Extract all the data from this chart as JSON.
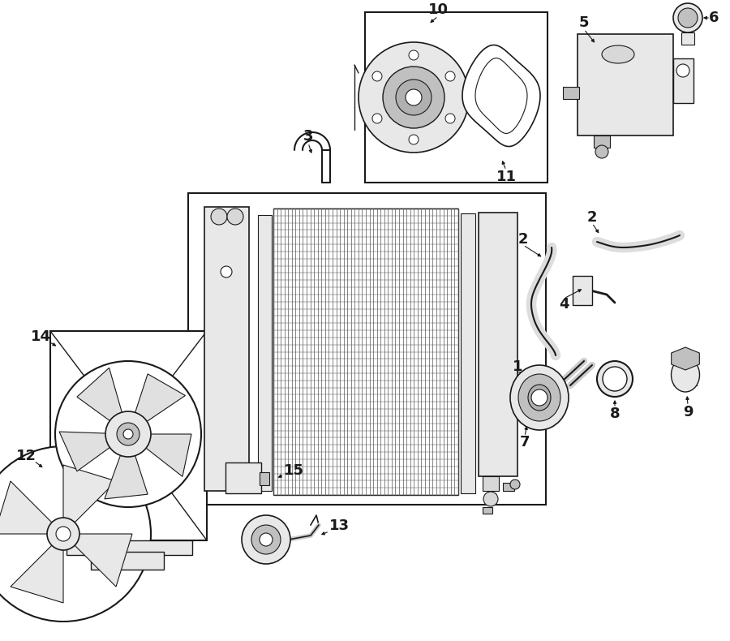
{
  "bg_color": "#ffffff",
  "lc": "#1a1a1a",
  "lc2": "#333333",
  "gray1": "#d8d8d8",
  "gray2": "#e8e8e8",
  "gray3": "#c0c0c0",
  "gray4": "#b0b0b0",
  "white": "#ffffff",
  "imgw": 900,
  "imgh": 790
}
